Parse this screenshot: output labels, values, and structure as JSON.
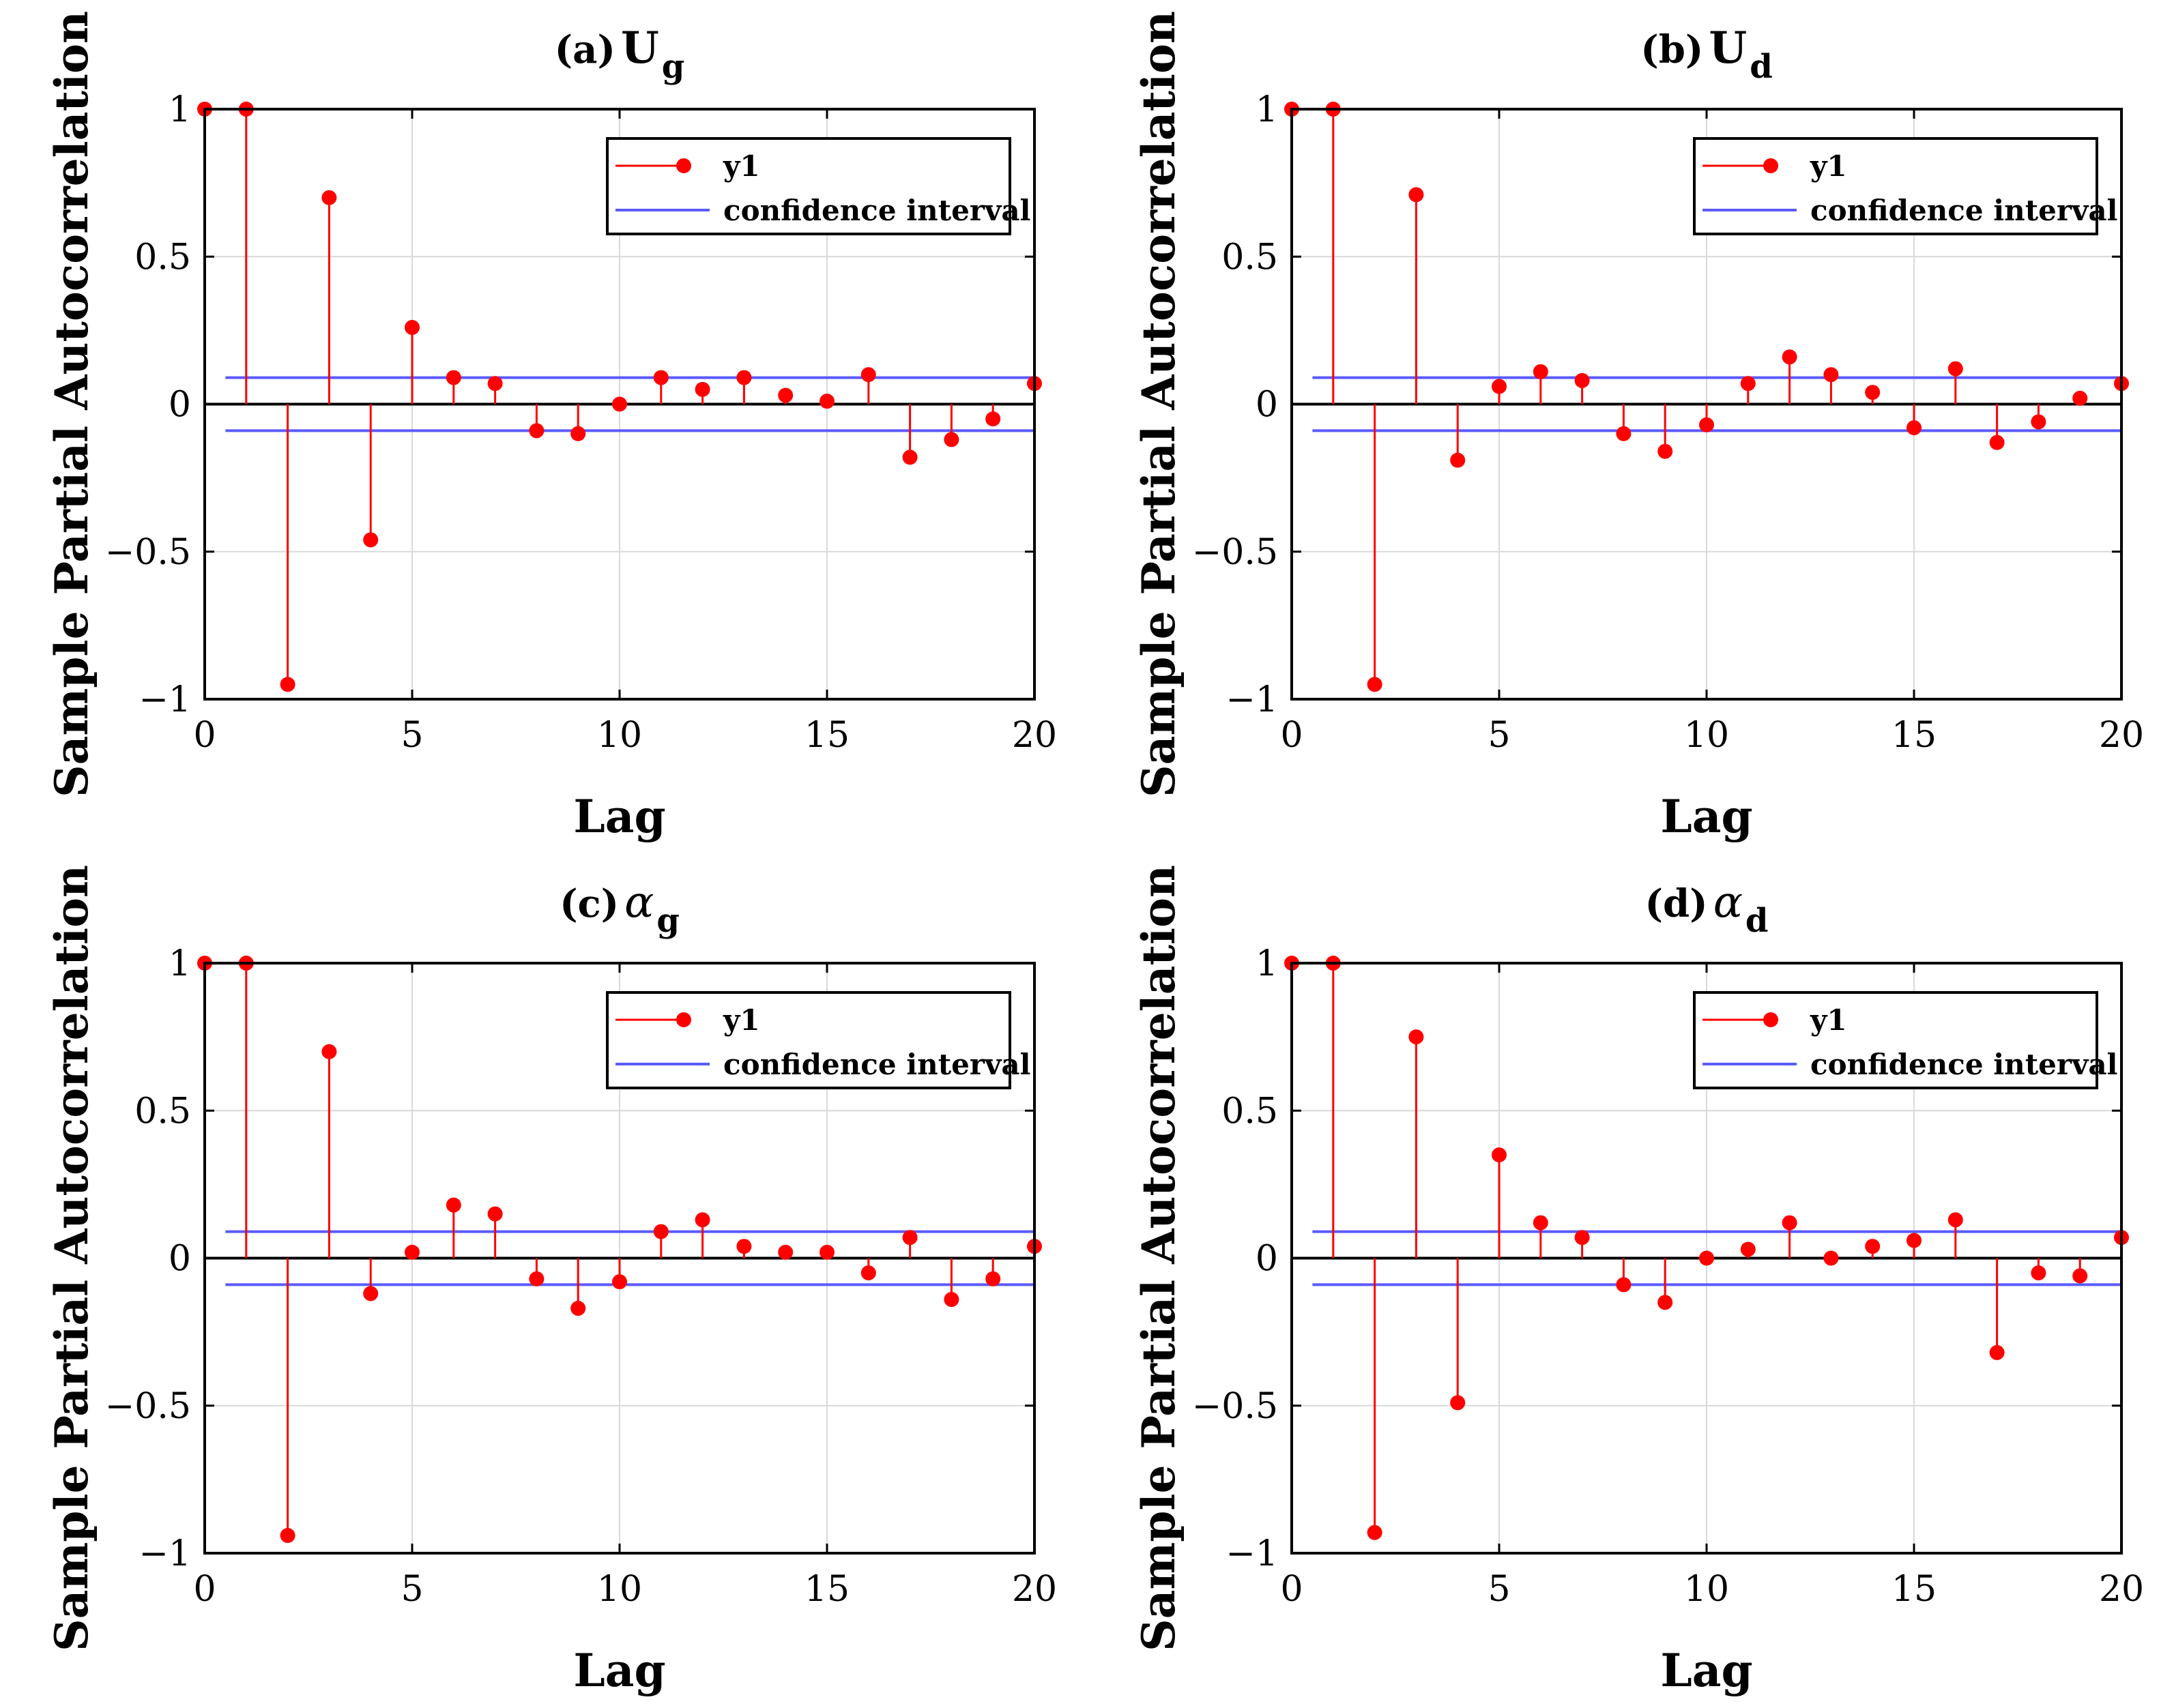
{
  "figure": {
    "legend_entries": {
      "series": "y1",
      "ci": "confidence interval"
    },
    "colors": {
      "stem": "#ff0000",
      "ci": "#5a5aff",
      "axis": "#000000",
      "grid": "#d9d9d9",
      "zero": "#000000"
    }
  },
  "chart_data": [
    {
      "type": "stem",
      "panel_label": "(a)",
      "title_symbol": "U",
      "title_subscript": "g",
      "title_italic": false,
      "xlabel": "Lag",
      "ylabel": "Sample Partial Autocorrelation",
      "xlim": [
        0,
        20
      ],
      "ylim": [
        -1,
        1
      ],
      "xticks": [
        "0",
        "5",
        "10",
        "15",
        "20"
      ],
      "yticks": [
        "−1",
        "−0.5",
        "0",
        "0.5",
        "1"
      ],
      "legend_position": "top-right",
      "confidence_interval": [
        -0.09,
        0.09
      ],
      "series": [
        {
          "name": "y1",
          "x": [
            0,
            1,
            2,
            3,
            4,
            5,
            6,
            7,
            8,
            9,
            10,
            11,
            12,
            13,
            14,
            15,
            16,
            17,
            18,
            19,
            20
          ],
          "values": [
            1.0,
            1.0,
            -0.95,
            0.7,
            -0.46,
            0.26,
            0.09,
            0.07,
            -0.09,
            -0.1,
            0.0,
            0.09,
            0.05,
            0.09,
            0.03,
            0.01,
            0.1,
            -0.18,
            -0.12,
            -0.05,
            0.07
          ]
        }
      ]
    },
    {
      "type": "stem",
      "panel_label": "(b)",
      "title_symbol": "U",
      "title_subscript": "d",
      "title_italic": false,
      "xlabel": "Lag",
      "ylabel": "Sample Partial Autocorrelation",
      "xlim": [
        0,
        20
      ],
      "ylim": [
        -1,
        1
      ],
      "xticks": [
        "0",
        "5",
        "10",
        "15",
        "20"
      ],
      "yticks": [
        "−1",
        "−0.5",
        "0",
        "0.5",
        "1"
      ],
      "legend_position": "top-right",
      "confidence_interval": [
        -0.09,
        0.09
      ],
      "series": [
        {
          "name": "y1",
          "x": [
            0,
            1,
            2,
            3,
            4,
            5,
            6,
            7,
            8,
            9,
            10,
            11,
            12,
            13,
            14,
            15,
            16,
            17,
            18,
            19,
            20
          ],
          "values": [
            1.0,
            1.0,
            -0.95,
            0.71,
            -0.19,
            0.06,
            0.11,
            0.08,
            -0.1,
            -0.16,
            -0.07,
            0.07,
            0.16,
            0.1,
            0.04,
            -0.08,
            0.12,
            -0.13,
            -0.06,
            0.02,
            0.07
          ]
        }
      ]
    },
    {
      "type": "stem",
      "panel_label": "(c)",
      "title_symbol": "α",
      "title_subscript": "g",
      "title_italic": true,
      "xlabel": "Lag",
      "ylabel": "Sample Partial Autocorrelation",
      "xlim": [
        0,
        20
      ],
      "ylim": [
        -1,
        1
      ],
      "xticks": [
        "0",
        "5",
        "10",
        "15",
        "20"
      ],
      "yticks": [
        "−1",
        "−0.5",
        "0",
        "0.5",
        "1"
      ],
      "legend_position": "top-right",
      "confidence_interval": [
        -0.09,
        0.09
      ],
      "series": [
        {
          "name": "y1",
          "x": [
            0,
            1,
            2,
            3,
            4,
            5,
            6,
            7,
            8,
            9,
            10,
            11,
            12,
            13,
            14,
            15,
            16,
            17,
            18,
            19,
            20
          ],
          "values": [
            1.0,
            1.0,
            -0.94,
            0.7,
            -0.12,
            0.02,
            0.18,
            0.15,
            -0.07,
            -0.17,
            -0.08,
            0.09,
            0.13,
            0.04,
            0.02,
            0.02,
            -0.05,
            0.07,
            -0.14,
            -0.07,
            0.04
          ]
        }
      ]
    },
    {
      "type": "stem",
      "panel_label": "(d)",
      "title_symbol": "α",
      "title_subscript": "d",
      "title_italic": true,
      "xlabel": "Lag",
      "ylabel": "Sample Partial Autocorrelation",
      "xlim": [
        0,
        20
      ],
      "ylim": [
        -1,
        1
      ],
      "xticks": [
        "0",
        "5",
        "10",
        "15",
        "20"
      ],
      "yticks": [
        "−1",
        "−0.5",
        "0",
        "0.5",
        "1"
      ],
      "legend_position": "top-right",
      "confidence_interval": [
        -0.09,
        0.09
      ],
      "series": [
        {
          "name": "y1",
          "x": [
            0,
            1,
            2,
            3,
            4,
            5,
            6,
            7,
            8,
            9,
            10,
            11,
            12,
            13,
            14,
            15,
            16,
            17,
            18,
            19,
            20
          ],
          "values": [
            1.0,
            1.0,
            -0.93,
            0.75,
            -0.49,
            0.35,
            0.12,
            0.07,
            -0.09,
            -0.15,
            0.0,
            0.03,
            0.12,
            0.0,
            0.04,
            0.06,
            0.13,
            -0.32,
            -0.05,
            -0.06,
            0.07
          ]
        }
      ]
    }
  ]
}
